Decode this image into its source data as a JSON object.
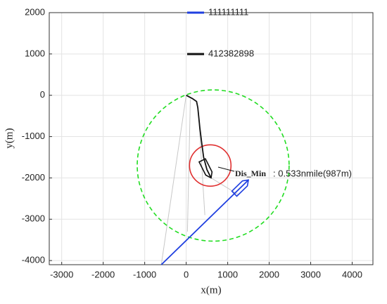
{
  "chart_data": {
    "type": "line",
    "xlabel": "x(m)",
    "ylabel": "y(m)",
    "xlim": [
      -3300,
      4500
    ],
    "xticks": [
      -3000,
      -2000,
      -1000,
      0,
      1000,
      2000,
      3000,
      4000
    ],
    "ylim": [
      -4100,
      2000
    ],
    "yticks": [
      -4000,
      -3000,
      -2000,
      -1000,
      0,
      1000,
      2000
    ],
    "grid": true,
    "series": [
      {
        "name": "111111111",
        "color": "#1f3fe0",
        "x": [
          -600,
          1500
        ],
        "y": [
          -4100,
          -2050
        ]
      },
      {
        "name": "412382898",
        "color": "#111111",
        "x": [
          0,
          150,
          250,
          280,
          300,
          330,
          380,
          420,
          500,
          600
        ],
        "y": [
          0,
          -80,
          -150,
          -300,
          -500,
          -800,
          -1200,
          -1500,
          -1800,
          -2000
        ]
      }
    ],
    "links": [
      {
        "color": "#c8c8c8",
        "x": [
          0,
          -600
        ],
        "y": [
          0,
          -4100
        ]
      },
      {
        "color": "#c8c8c8",
        "x": [
          100,
          30
        ],
        "y": [
          -100,
          -3300
        ]
      },
      {
        "color": "#c8c8c8",
        "x": [
          300,
          450
        ],
        "y": [
          -500,
          -2900
        ]
      },
      {
        "color": "#c8c8c8",
        "x": [
          600,
          1250
        ],
        "y": [
          -2000,
          -2400
        ]
      }
    ],
    "circles": [
      {
        "center": [
          650,
          -1700
        ],
        "radius": 1830,
        "color": "#22dd22",
        "dashed": true
      },
      {
        "center": [
          580,
          -1700
        ],
        "radius": 500,
        "color": "#e03030",
        "dashed": false
      }
    ],
    "annotation": {
      "label": "Dis_Min",
      "text": ": 0.533nmile(987m)"
    }
  }
}
